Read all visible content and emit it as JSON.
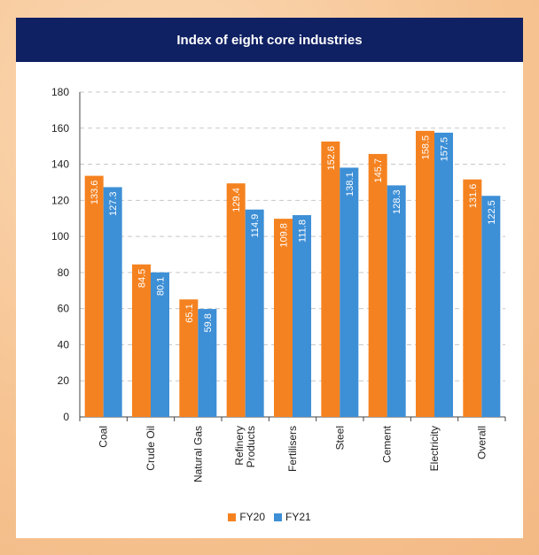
{
  "chart_data": {
    "type": "bar",
    "title": "Index of eight core industries",
    "categories": [
      "Coal",
      "Crude Oil",
      "Natural Gas",
      "Refinery Products",
      "Fertilisers",
      "Steel",
      "Cement",
      "Electricity",
      "Overall"
    ],
    "category_lines": [
      [
        "Coal"
      ],
      [
        "Crude Oil"
      ],
      [
        "Natural Gas"
      ],
      [
        "Refinery",
        "Products"
      ],
      [
        "Fertilisers"
      ],
      [
        "Steel"
      ],
      [
        "Cement"
      ],
      [
        "Electricity"
      ],
      [
        "Overall"
      ]
    ],
    "series": [
      {
        "name": "FY20",
        "color": "#f58220",
        "values": [
          133.6,
          84.5,
          65.1,
          129.4,
          109.8,
          152.6,
          145.7,
          158.5,
          131.6
        ]
      },
      {
        "name": "FY21",
        "color": "#3d8fd6",
        "values": [
          127.3,
          80.1,
          59.8,
          114.9,
          111.8,
          138.1,
          128.3,
          157.5,
          122.5
        ]
      }
    ],
    "ylim": [
      0,
      180
    ],
    "yticks": [
      0,
      20,
      40,
      60,
      80,
      100,
      120,
      140,
      160,
      180
    ],
    "grid": true,
    "legend_position": "bottom"
  }
}
